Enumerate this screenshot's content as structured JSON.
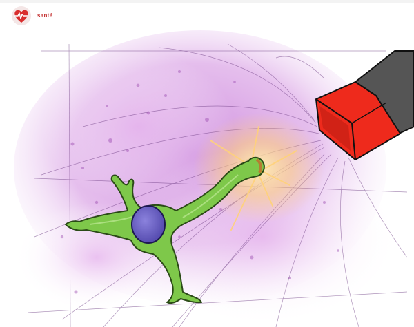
{
  "header": {
    "brand": "santé",
    "brand_color": "#c22a2a",
    "logo_icon": "heart-pulse-icon"
  },
  "illustration": {
    "subject": "neuron-cell-and-magnet",
    "colors": {
      "background_haze": "#c77ad9",
      "cell_body": "#7ec84a",
      "nucleus": "#6a5fc4",
      "magnet_red": "#ee2a1c",
      "magnet_grey": "#555555",
      "glow": "#ffd27a"
    }
  }
}
